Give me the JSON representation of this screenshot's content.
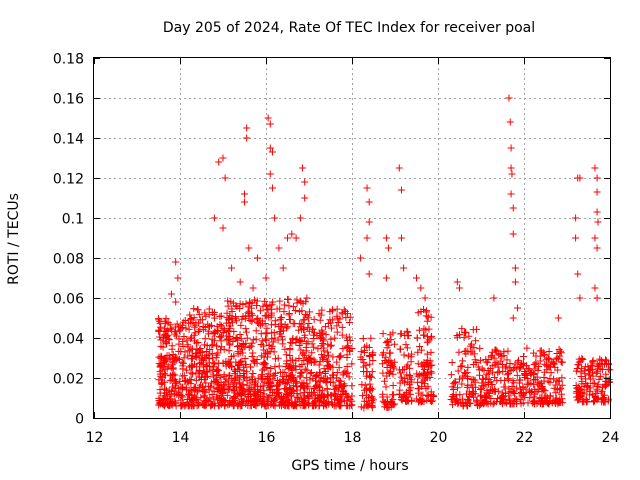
{
  "chart_data": {
    "type": "scatter",
    "title": "Day 205 of 2024, Rate Of TEC Index for receiver poal",
    "xlabel": "GPS time / hours",
    "ylabel": "ROTI / TECUs",
    "xlim": [
      12,
      24
    ],
    "ylim": [
      0,
      0.18
    ],
    "x_ticks": [
      "12",
      "14",
      "16",
      "18",
      "20",
      "22",
      "24"
    ],
    "y_ticks": [
      "0",
      "0.02",
      "0.04",
      "0.06",
      "0.08",
      "0.1",
      "0.12",
      "0.14",
      "0.16",
      "0.18"
    ],
    "grid": true,
    "marker": "plus",
    "color": "#ff0000",
    "clusters": [
      {
        "x": [
          13.5,
          14.2
        ],
        "y": [
          0.006,
          0.05
        ],
        "n": 220
      },
      {
        "x": [
          14.2,
          15.0
        ],
        "y": [
          0.006,
          0.055
        ],
        "n": 260
      },
      {
        "x": [
          15.0,
          16.0
        ],
        "y": [
          0.006,
          0.06
        ],
        "n": 340
      },
      {
        "x": [
          16.0,
          17.0
        ],
        "y": [
          0.006,
          0.06
        ],
        "n": 340
      },
      {
        "x": [
          17.0,
          18.0
        ],
        "y": [
          0.006,
          0.055
        ],
        "n": 260
      },
      {
        "x": [
          18.2,
          18.5
        ],
        "y": [
          0.005,
          0.04
        ],
        "n": 60
      },
      {
        "x": [
          18.7,
          19.0
        ],
        "y": [
          0.005,
          0.045
        ],
        "n": 60
      },
      {
        "x": [
          19.1,
          19.4
        ],
        "y": [
          0.008,
          0.045
        ],
        "n": 60
      },
      {
        "x": [
          19.5,
          19.9
        ],
        "y": [
          0.008,
          0.055
        ],
        "n": 90
      },
      {
        "x": [
          20.3,
          21.0
        ],
        "y": [
          0.006,
          0.045
        ],
        "n": 110
      },
      {
        "x": [
          21.0,
          22.9
        ],
        "y": [
          0.007,
          0.035
        ],
        "n": 330
      },
      {
        "x": [
          23.2,
          24.0
        ],
        "y": [
          0.008,
          0.03
        ],
        "n": 140
      }
    ],
    "points": [
      [
        13.9,
        0.078
      ],
      [
        13.95,
        0.07
      ],
      [
        13.8,
        0.062
      ],
      [
        13.9,
        0.058
      ],
      [
        14.8,
        0.1
      ],
      [
        14.9,
        0.128
      ],
      [
        15.0,
        0.13
      ],
      [
        15.05,
        0.12
      ],
      [
        15.0,
        0.095
      ],
      [
        15.2,
        0.075
      ],
      [
        15.4,
        0.068
      ],
      [
        15.5,
        0.112
      ],
      [
        15.5,
        0.108
      ],
      [
        15.55,
        0.14
      ],
      [
        15.55,
        0.145
      ],
      [
        15.6,
        0.085
      ],
      [
        15.8,
        0.08
      ],
      [
        16.05,
        0.15
      ],
      [
        16.1,
        0.147
      ],
      [
        16.1,
        0.135
      ],
      [
        16.15,
        0.133
      ],
      [
        16.1,
        0.122
      ],
      [
        16.15,
        0.115
      ],
      [
        16.2,
        0.1
      ],
      [
        16.3,
        0.085
      ],
      [
        16.5,
        0.09
      ],
      [
        16.6,
        0.092
      ],
      [
        16.85,
        0.125
      ],
      [
        16.9,
        0.118
      ],
      [
        16.9,
        0.11
      ],
      [
        16.8,
        0.1
      ],
      [
        16.7,
        0.09
      ],
      [
        16.4,
        0.075
      ],
      [
        16.0,
        0.07
      ],
      [
        15.7,
        0.065
      ],
      [
        18.35,
        0.115
      ],
      [
        18.4,
        0.108
      ],
      [
        18.4,
        0.098
      ],
      [
        18.35,
        0.09
      ],
      [
        18.2,
        0.08
      ],
      [
        18.4,
        0.072
      ],
      [
        18.8,
        0.09
      ],
      [
        18.85,
        0.085
      ],
      [
        18.8,
        0.07
      ],
      [
        19.1,
        0.125
      ],
      [
        19.15,
        0.114
      ],
      [
        19.15,
        0.09
      ],
      [
        19.2,
        0.075
      ],
      [
        19.5,
        0.07
      ],
      [
        19.6,
        0.065
      ],
      [
        19.7,
        0.06
      ],
      [
        20.45,
        0.068
      ],
      [
        20.5,
        0.065
      ],
      [
        21.3,
        0.06
      ],
      [
        21.65,
        0.16
      ],
      [
        21.68,
        0.148
      ],
      [
        21.7,
        0.135
      ],
      [
        21.7,
        0.125
      ],
      [
        21.72,
        0.122
      ],
      [
        21.7,
        0.112
      ],
      [
        21.75,
        0.105
      ],
      [
        21.75,
        0.092
      ],
      [
        21.8,
        0.075
      ],
      [
        21.8,
        0.068
      ],
      [
        21.85,
        0.055
      ],
      [
        21.75,
        0.05
      ],
      [
        22.8,
        0.05
      ],
      [
        23.2,
        0.09
      ],
      [
        23.25,
        0.12
      ],
      [
        23.3,
        0.12
      ],
      [
        23.2,
        0.1
      ],
      [
        23.25,
        0.072
      ],
      [
        23.3,
        0.06
      ],
      [
        23.65,
        0.125
      ],
      [
        23.7,
        0.12
      ],
      [
        23.7,
        0.113
      ],
      [
        23.7,
        0.103
      ],
      [
        23.72,
        0.098
      ],
      [
        23.65,
        0.09
      ],
      [
        23.7,
        0.085
      ],
      [
        23.65,
        0.065
      ],
      [
        23.7,
        0.06
      ]
    ]
  }
}
